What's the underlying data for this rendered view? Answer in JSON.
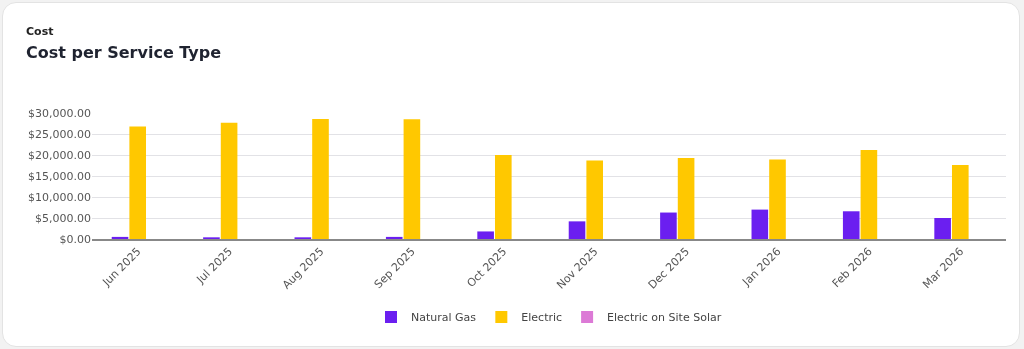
{
  "chart_data": {
    "type": "bar",
    "subtitle": "Cost",
    "title": "Cost per Service Type",
    "categories": [
      "Jun 2025",
      "Jul 2025",
      "Aug 2025",
      "Sep 2025",
      "Oct 2025",
      "Nov 2025",
      "Dec 2025",
      "Jan 2026",
      "Feb 2026",
      "Mar 2026"
    ],
    "series": [
      {
        "name": "Natural Gas",
        "color": "#6b1ff0",
        "values": [
          500,
          400,
          400,
          500,
          1800,
          4200,
          6300,
          7000,
          6600,
          5000
        ]
      },
      {
        "name": "Electric",
        "color": "#ffc800",
        "values": [
          26800,
          27700,
          28600,
          28500,
          20000,
          18700,
          19300,
          18900,
          21200,
          17600
        ]
      },
      {
        "name": "Electric on Site Solar",
        "color": "#dc7ad6",
        "values": [
          null,
          null,
          null,
          null,
          null,
          null,
          null,
          null,
          null,
          null
        ]
      }
    ],
    "ylim": [
      0,
      30000
    ],
    "yticks": [
      {
        "value": 0,
        "label": "$0.00"
      },
      {
        "value": 5000,
        "label": "$5,000.00"
      },
      {
        "value": 10000,
        "label": "$10,000.00"
      },
      {
        "value": 15000,
        "label": "$15,000.00"
      },
      {
        "value": 20000,
        "label": "$20,000.00"
      },
      {
        "value": 25000,
        "label": "$25,000.00"
      },
      {
        "value": 30000,
        "label": "$30,000.00"
      }
    ],
    "grid": "y",
    "legend": "bottom"
  }
}
